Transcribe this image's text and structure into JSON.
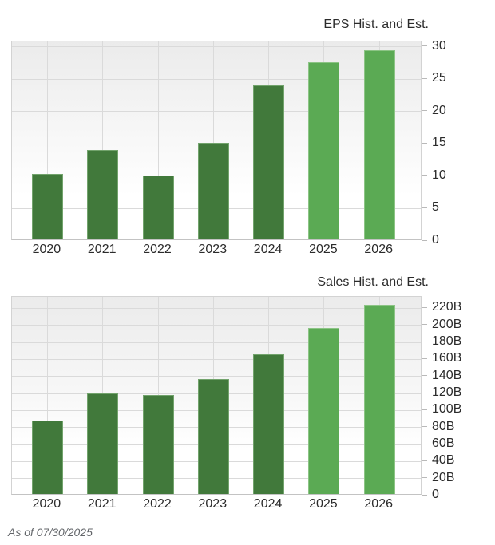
{
  "chart_data": [
    {
      "type": "bar",
      "title": "EPS Hist. and Est.",
      "categories": [
        "2020",
        "2021",
        "2022",
        "2023",
        "2024",
        "2025",
        "2026"
      ],
      "values": [
        10.1,
        13.8,
        9.8,
        14.9,
        23.8,
        27.3,
        29.2
      ],
      "series_roles": [
        "historical",
        "historical",
        "historical",
        "historical",
        "historical",
        "estimate",
        "estimate"
      ],
      "ylim": [
        0,
        30
      ],
      "yticks": [
        0,
        5,
        10,
        15,
        20,
        25,
        30
      ],
      "ytick_labels": [
        "0",
        "5",
        "10",
        "15",
        "20",
        "25",
        "30"
      ],
      "y_axis_side": "right",
      "grid": true,
      "legend": "none"
    },
    {
      "type": "bar",
      "title": "Sales Hist. and Est.",
      "categories": [
        "2020",
        "2021",
        "2022",
        "2023",
        "2024",
        "2025",
        "2026"
      ],
      "values": [
        86,
        118,
        116.5,
        135,
        164.5,
        195,
        222
      ],
      "unit": "B",
      "series_roles": [
        "historical",
        "historical",
        "historical",
        "historical",
        "historical",
        "estimate",
        "estimate"
      ],
      "ylim": [
        0,
        220
      ],
      "yticks": [
        0,
        20,
        40,
        60,
        80,
        100,
        120,
        140,
        160,
        180,
        200,
        220
      ],
      "ytick_labels": [
        "0",
        "20B",
        "40B",
        "60B",
        "80B",
        "100B",
        "120B",
        "140B",
        "160B",
        "180B",
        "200B",
        "220B"
      ],
      "y_axis_side": "right",
      "grid": true,
      "legend": "none"
    }
  ],
  "colors": {
    "historical_bar": "#41793b",
    "historical_bar_edge": "#72a36c",
    "estimate_bar": "#5baa54",
    "estimate_bar_edge": "#8cc485",
    "gridline": "#dadada",
    "plot_bg_top": "#ebebeb",
    "axis_text": "#2b2b2b"
  },
  "footer": {
    "as_of": "As of 07/30/2025"
  }
}
